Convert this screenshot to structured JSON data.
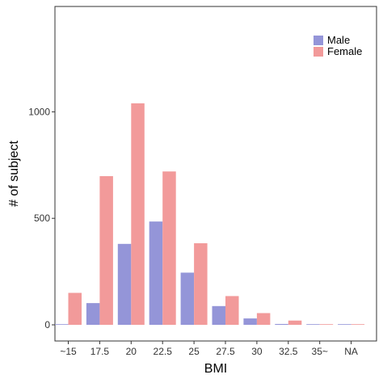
{
  "chart_data": {
    "type": "bar",
    "title": "",
    "xlabel": "BMI",
    "ylabel": "# of subject",
    "categories": [
      "~15",
      "17.5",
      "20",
      "22.5",
      "25",
      "27.5",
      "30",
      "32.5",
      "35~",
      "NA"
    ],
    "series": [
      {
        "name": "Male",
        "color": "#9495d8",
        "values": [
          3,
          102,
          380,
          485,
          245,
          88,
          30,
          4,
          1,
          1
        ]
      },
      {
        "name": "Female",
        "color": "#f29a9a",
        "values": [
          150,
          698,
          1040,
          720,
          383,
          135,
          55,
          20,
          3,
          3
        ]
      }
    ],
    "ylim": [
      -75,
      1500
    ],
    "yticks": [
      0,
      500,
      1000
    ],
    "grid": false,
    "legend_position": "top-right"
  }
}
